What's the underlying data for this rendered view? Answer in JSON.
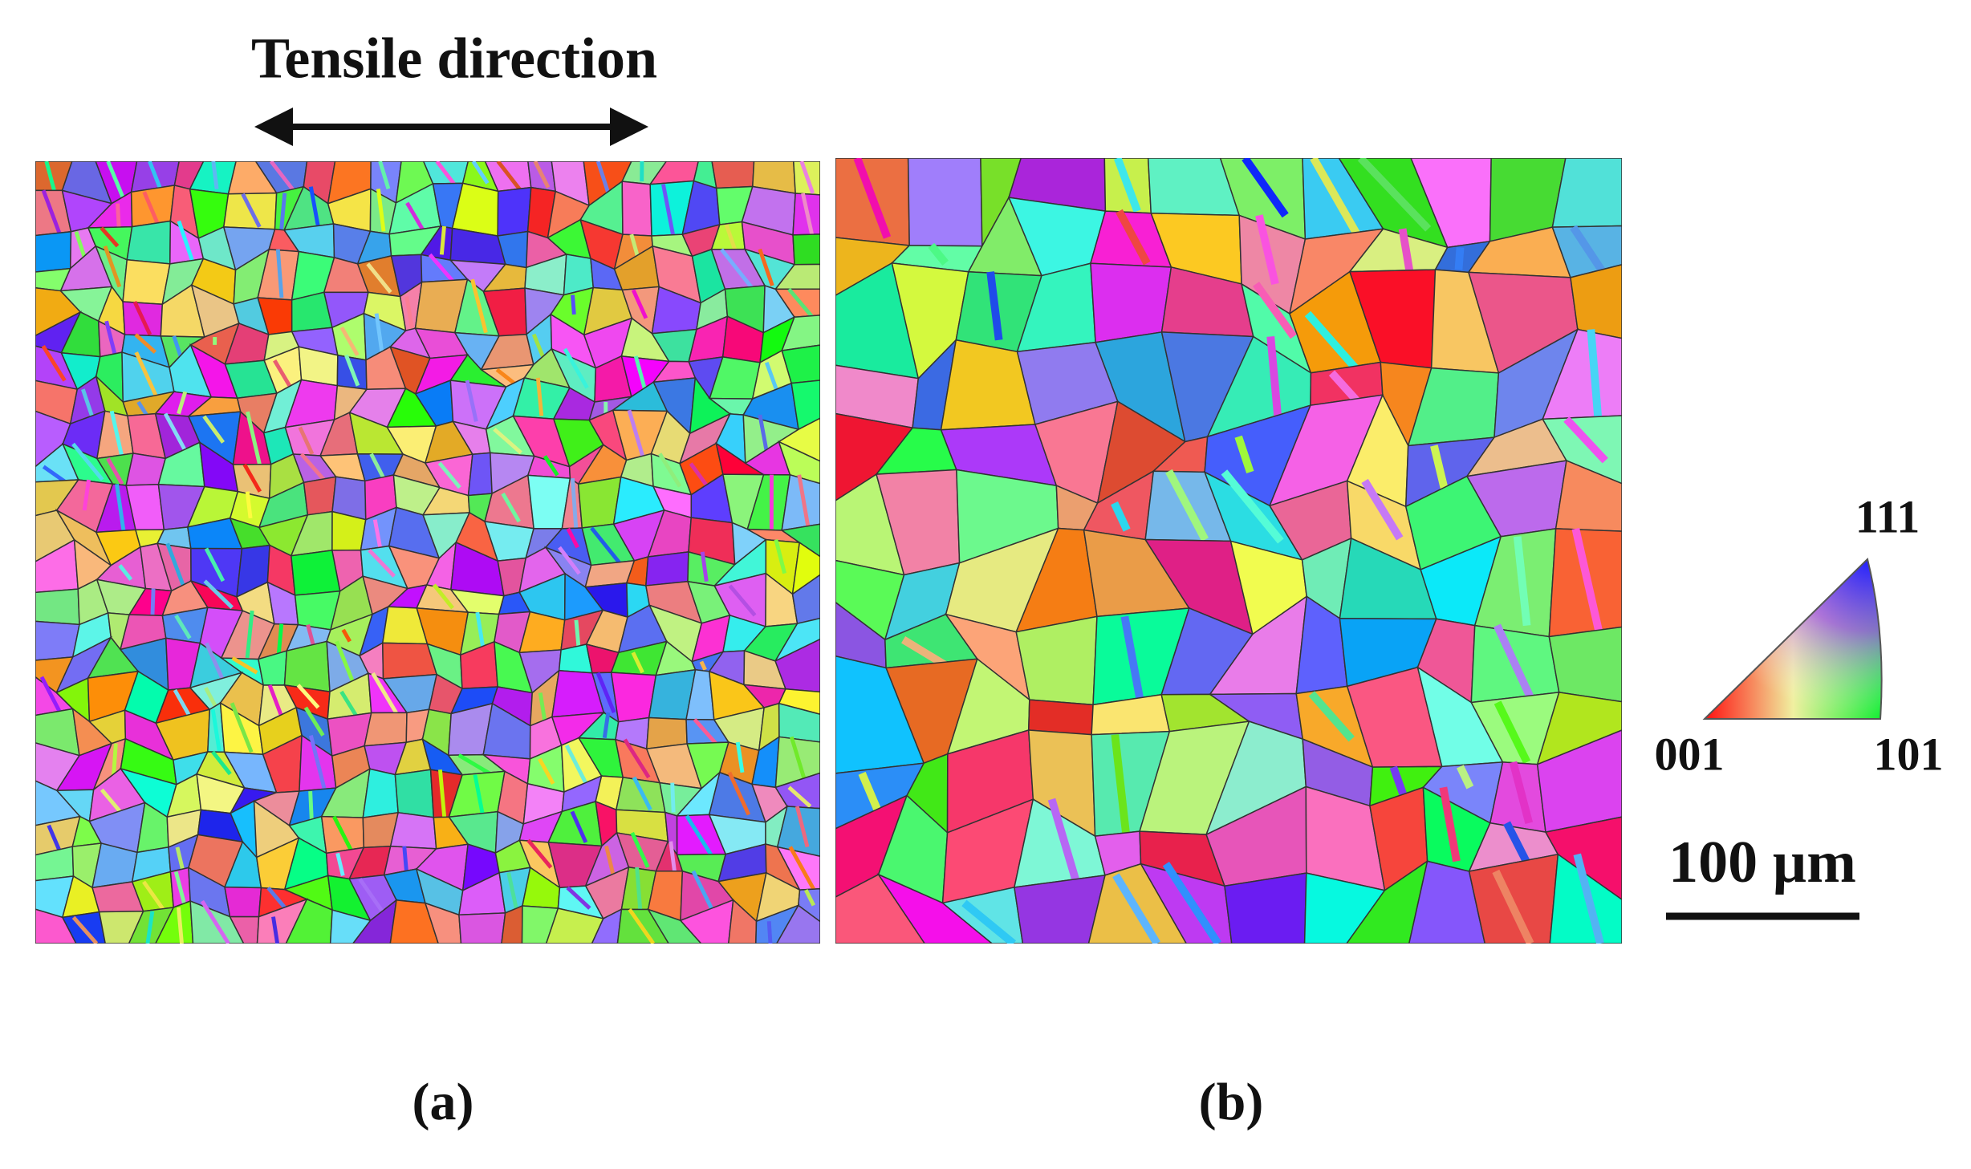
{
  "figure": {
    "title": "Tensile direction",
    "panels": [
      {
        "label": "(a)"
      },
      {
        "label": "(b)"
      }
    ],
    "legend": {
      "top": "111",
      "left": "001",
      "right": "101"
    },
    "scale_bar": "100 µm"
  }
}
